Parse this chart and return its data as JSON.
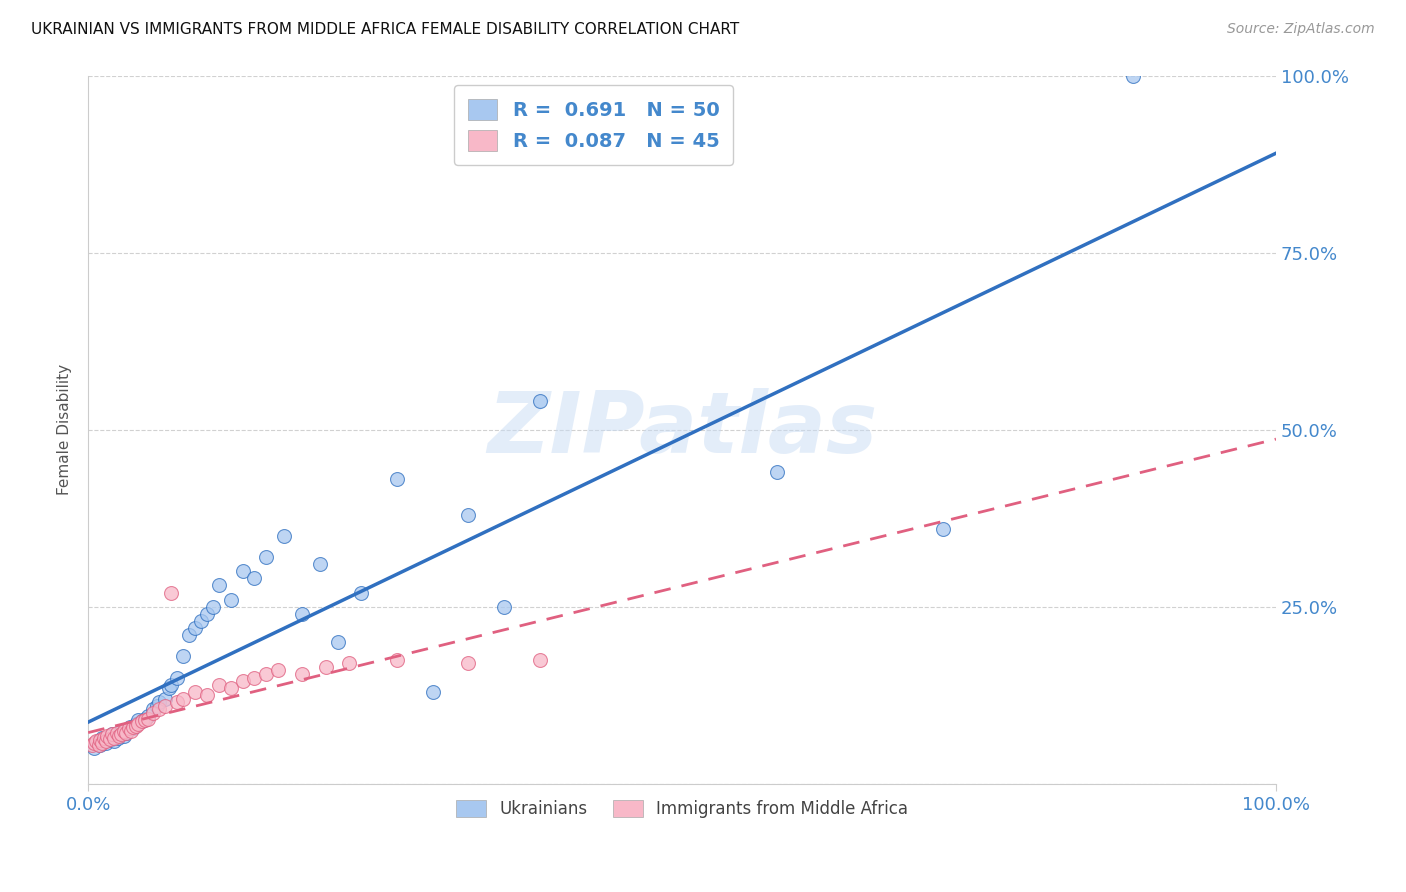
{
  "title": "UKRAINIAN VS IMMIGRANTS FROM MIDDLE AFRICA FEMALE DISABILITY CORRELATION CHART",
  "source": "Source: ZipAtlas.com",
  "ylabel": "Female Disability",
  "watermark": "ZIPatlas",
  "blue_R": 0.691,
  "blue_N": 50,
  "pink_R": 0.087,
  "pink_N": 45,
  "blue_color": "#A8C8F0",
  "pink_color": "#F8B8C8",
  "blue_line_color": "#3070C0",
  "pink_line_color": "#E06080",
  "axis_label_color": "#4488CC",
  "title_color": "#111111",
  "background_color": "#FFFFFF",
  "grid_color": "#CCCCCC",
  "xlim": [
    0,
    1
  ],
  "ylim": [
    0,
    1
  ],
  "blue_x": [
    0.005,
    0.008,
    0.01,
    0.012,
    0.015,
    0.018,
    0.02,
    0.022,
    0.025,
    0.028,
    0.03,
    0.032,
    0.035,
    0.038,
    0.04,
    0.042,
    0.045,
    0.048,
    0.05,
    0.055,
    0.058,
    0.06,
    0.065,
    0.068,
    0.07,
    0.075,
    0.08,
    0.085,
    0.09,
    0.095,
    0.1,
    0.105,
    0.11,
    0.12,
    0.13,
    0.14,
    0.15,
    0.165,
    0.18,
    0.195,
    0.21,
    0.23,
    0.26,
    0.29,
    0.32,
    0.35,
    0.38,
    0.58,
    0.72,
    0.88
  ],
  "blue_y": [
    0.05,
    0.06,
    0.055,
    0.065,
    0.058,
    0.062,
    0.07,
    0.06,
    0.065,
    0.075,
    0.068,
    0.072,
    0.08,
    0.078,
    0.085,
    0.09,
    0.088,
    0.092,
    0.095,
    0.105,
    0.11,
    0.115,
    0.12,
    0.135,
    0.14,
    0.15,
    0.18,
    0.21,
    0.22,
    0.23,
    0.24,
    0.25,
    0.28,
    0.26,
    0.3,
    0.29,
    0.32,
    0.35,
    0.24,
    0.31,
    0.2,
    0.27,
    0.43,
    0.13,
    0.38,
    0.25,
    0.54,
    0.44,
    0.36,
    1.0
  ],
  "pink_x": [
    0.003,
    0.005,
    0.007,
    0.009,
    0.01,
    0.012,
    0.013,
    0.015,
    0.016,
    0.018,
    0.02,
    0.022,
    0.024,
    0.026,
    0.028,
    0.03,
    0.032,
    0.034,
    0.036,
    0.038,
    0.04,
    0.042,
    0.045,
    0.048,
    0.05,
    0.055,
    0.06,
    0.065,
    0.07,
    0.075,
    0.08,
    0.09,
    0.1,
    0.11,
    0.12,
    0.13,
    0.14,
    0.15,
    0.16,
    0.18,
    0.2,
    0.22,
    0.26,
    0.32,
    0.38
  ],
  "pink_y": [
    0.055,
    0.058,
    0.06,
    0.055,
    0.062,
    0.058,
    0.065,
    0.06,
    0.068,
    0.063,
    0.07,
    0.065,
    0.072,
    0.068,
    0.07,
    0.075,
    0.072,
    0.078,
    0.075,
    0.08,
    0.082,
    0.085,
    0.088,
    0.09,
    0.092,
    0.1,
    0.105,
    0.11,
    0.27,
    0.115,
    0.12,
    0.13,
    0.125,
    0.14,
    0.135,
    0.145,
    0.15,
    0.155,
    0.16,
    0.155,
    0.165,
    0.17,
    0.175,
    0.17,
    0.175
  ]
}
